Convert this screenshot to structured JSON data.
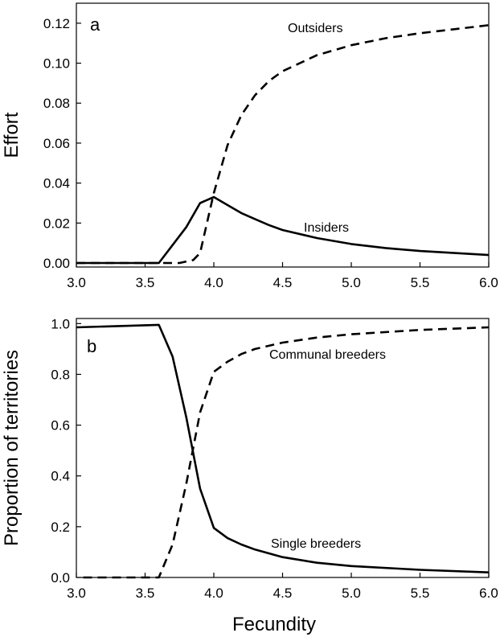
{
  "chart_data": [
    {
      "type": "line",
      "panel_label": "a",
      "xlabel": "",
      "ylabel": "Effort",
      "xlim": [
        3.0,
        6.0
      ],
      "ylim": [
        -0.002,
        0.13
      ],
      "x_ticks": [
        3.0,
        3.5,
        4.0,
        4.5,
        5.0,
        5.5,
        6.0
      ],
      "x_tick_labels": [
        "3.0",
        "3.5",
        "4.0",
        "4.5",
        "5.0",
        "5.5",
        "6.0"
      ],
      "y_ticks": [
        0.0,
        0.02,
        0.04,
        0.06,
        0.08,
        0.1,
        0.12
      ],
      "y_tick_labels": [
        "0.00",
        "0.02",
        "0.04",
        "0.06",
        "0.08",
        "0.10",
        "0.12"
      ],
      "grid": false,
      "series": [
        {
          "name": "Outsiders",
          "line_style": "dashed",
          "x": [
            3.0,
            3.6,
            3.75,
            3.85,
            3.9,
            4.0,
            4.1,
            4.2,
            4.3,
            4.4,
            4.5,
            4.75,
            5.0,
            5.25,
            5.5,
            5.75,
            6.0
          ],
          "y": [
            0.0,
            0.0,
            0.0,
            0.0015,
            0.005,
            0.035,
            0.059,
            0.074,
            0.084,
            0.091,
            0.096,
            0.104,
            0.109,
            0.1125,
            0.115,
            0.117,
            0.119
          ]
        },
        {
          "name": "Insiders",
          "line_style": "solid",
          "x": [
            3.0,
            3.6,
            3.7,
            3.8,
            3.9,
            4.0,
            4.1,
            4.2,
            4.3,
            4.4,
            4.5,
            4.75,
            5.0,
            5.25,
            5.5,
            5.75,
            6.0
          ],
          "y": [
            0.0,
            0.0,
            0.009,
            0.018,
            0.03,
            0.033,
            0.029,
            0.025,
            0.022,
            0.019,
            0.0165,
            0.0125,
            0.0095,
            0.0075,
            0.006,
            0.005,
            0.004
          ]
        }
      ]
    },
    {
      "type": "line",
      "panel_label": "b",
      "xlabel": "Fecundity",
      "ylabel": "Proportion of territories",
      "xlim": [
        3.0,
        6.0
      ],
      "ylim": [
        0.0,
        1.02
      ],
      "x_ticks": [
        3.0,
        3.5,
        4.0,
        4.5,
        5.0,
        5.5,
        6.0
      ],
      "x_tick_labels": [
        "3.0",
        "3.5",
        "4.0",
        "4.5",
        "5.0",
        "5.5",
        "6.0"
      ],
      "y_ticks": [
        0.0,
        0.2,
        0.4,
        0.6,
        0.8,
        1.0
      ],
      "y_tick_labels": [
        "0.0",
        "0.2",
        "0.4",
        "0.6",
        "0.8",
        "1.0"
      ],
      "grid": false,
      "series": [
        {
          "name": "Communal breeders",
          "line_style": "dashed",
          "x": [
            3.05,
            3.6,
            3.7,
            3.8,
            3.9,
            4.0,
            4.1,
            4.2,
            4.3,
            4.5,
            4.75,
            5.0,
            5.5,
            6.0
          ],
          "y": [
            0.0,
            0.0,
            0.13,
            0.37,
            0.65,
            0.81,
            0.85,
            0.88,
            0.9,
            0.925,
            0.945,
            0.958,
            0.975,
            0.985
          ]
        },
        {
          "name": "Single breeders",
          "line_style": "solid",
          "x": [
            3.0,
            3.6,
            3.7,
            3.8,
            3.9,
            4.0,
            4.1,
            4.2,
            4.3,
            4.5,
            4.75,
            5.0,
            5.5,
            6.0
          ],
          "y": [
            0.985,
            0.995,
            0.87,
            0.63,
            0.35,
            0.195,
            0.155,
            0.13,
            0.11,
            0.08,
            0.058,
            0.045,
            0.03,
            0.02
          ]
        }
      ]
    }
  ]
}
